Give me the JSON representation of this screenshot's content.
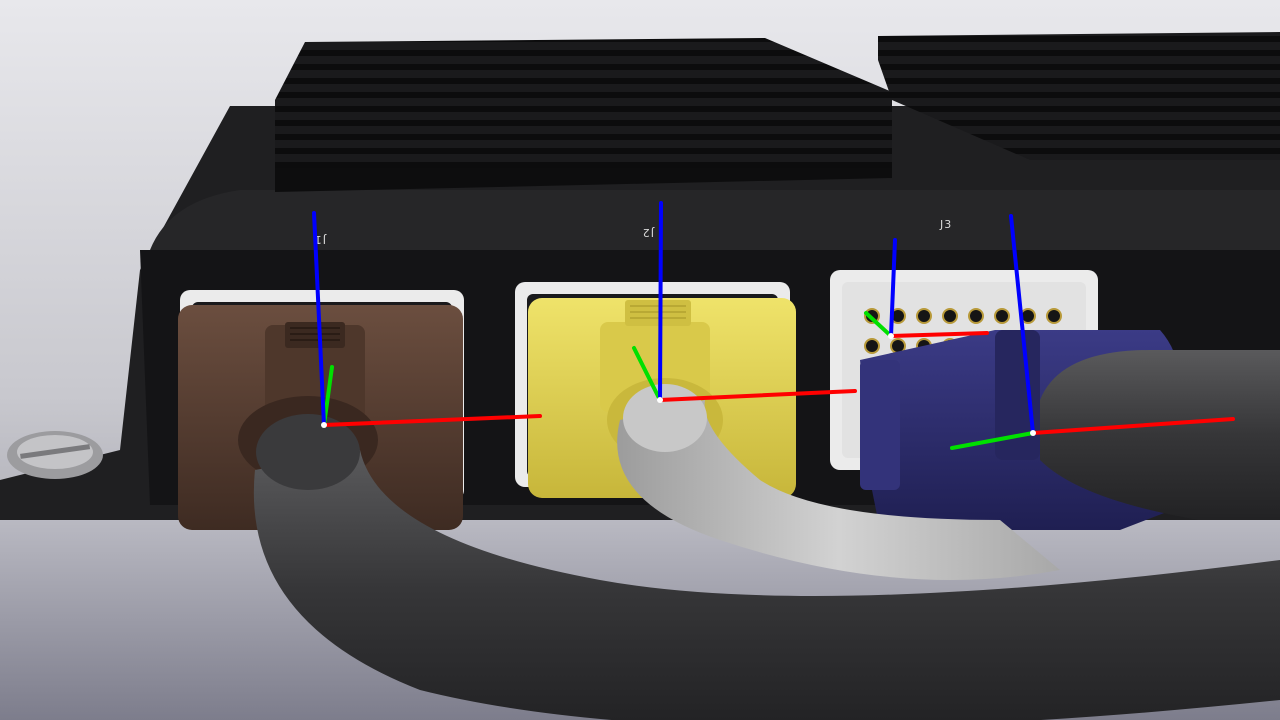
{
  "scene": {
    "description_free": true,
    "port_labels": {
      "j1": "J1",
      "j2": "J2",
      "j3": "J3"
    },
    "colors": {
      "background_top": "#e6e6ea",
      "background_bottom": "#9a9aa6",
      "enclosure": "#1e1e20",
      "heatsink": "#151517",
      "bezel": "#e9e9e9",
      "connector_brown": "#5a4032",
      "connector_yellow": "#e3d34e",
      "connector_blue": "#2d2d6e",
      "cable_dark": "#3c3c3e",
      "cable_light": "#bdbdbd",
      "axis_x": "#ff0000",
      "axis_y": "#00e000",
      "axis_z": "#0000ff"
    }
  }
}
